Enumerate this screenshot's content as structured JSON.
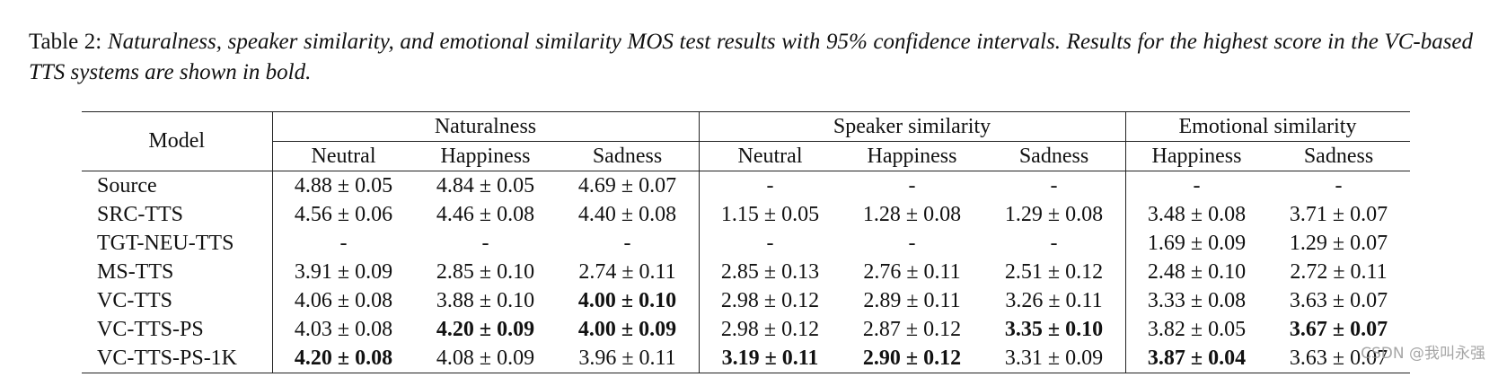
{
  "caption": {
    "label": "Table 2:",
    "text": "Naturalness, speaker similarity, and emotional similarity MOS test results with 95% confidence intervals. Results for the highest score in the VC-based TTS systems are shown in bold."
  },
  "table": {
    "model_header": "Model",
    "groups": [
      {
        "name": "Naturalness",
        "columns": [
          "Neutral",
          "Happiness",
          "Sadness"
        ]
      },
      {
        "name": "Speaker similarity",
        "columns": [
          "Neutral",
          "Happiness",
          "Sadness"
        ]
      },
      {
        "name": "Emotional similarity",
        "columns": [
          "Happiness",
          "Sadness"
        ]
      }
    ],
    "rows": [
      {
        "model": "Source",
        "cells": [
          "4.88 ± 0.05",
          "4.84 ± 0.05",
          "4.69 ± 0.07",
          "-",
          "-",
          "-",
          "-",
          "-"
        ]
      },
      {
        "model": "SRC-TTS",
        "cells": [
          "4.56 ± 0.06",
          "4.46 ± 0.08",
          "4.40 ± 0.08",
          "1.15 ± 0.05",
          "1.28 ± 0.08",
          "1.29 ± 0.08",
          "3.48 ± 0.08",
          "3.71 ± 0.07"
        ]
      },
      {
        "model": "TGT-NEU-TTS",
        "cells": [
          "-",
          "-",
          "-",
          "-",
          "-",
          "-",
          "1.69 ± 0.09",
          "1.29 ± 0.07"
        ]
      },
      {
        "model": "MS-TTS",
        "cells": [
          "3.91 ± 0.09",
          "2.85 ± 0.10",
          "2.74 ± 0.11",
          "2.85 ± 0.13",
          "2.76 ± 0.11",
          "2.51 ± 0.12",
          "2.48 ± 0.10",
          "2.72 ± 0.11"
        ]
      },
      {
        "model": "VC-TTS",
        "cells": [
          "4.06 ± 0.08",
          "3.88 ± 0.10",
          {
            "text": "4.00 ± 0.10",
            "bold": true
          },
          "2.98 ± 0.12",
          "2.89 ± 0.11",
          "3.26 ± 0.11",
          "3.33 ± 0.08",
          "3.63 ± 0.07"
        ]
      },
      {
        "model": "VC-TTS-PS",
        "cells": [
          "4.03 ± 0.08",
          {
            "text": "4.20 ± 0.09",
            "bold": true
          },
          {
            "text": "4.00 ± 0.09",
            "bold": true
          },
          "2.98 ± 0.12",
          "2.87 ± 0.12",
          {
            "text": "3.35 ± 0.10",
            "bold": true
          },
          "3.82 ± 0.05",
          {
            "text": "3.67 ± 0.07",
            "bold": true
          }
        ]
      },
      {
        "model": "VC-TTS-PS-1K",
        "cells": [
          {
            "text": "4.20 ± 0.08",
            "bold": true
          },
          "4.08 ± 0.09",
          "3.96 ± 0.11",
          {
            "text": "3.19 ± 0.11",
            "bold": true
          },
          {
            "text": "2.90 ± 0.12",
            "bold": true
          },
          "3.31 ± 0.09",
          {
            "text": "3.87 ± 0.04",
            "bold": true
          },
          "3.63 ± 0.07"
        ]
      }
    ]
  },
  "watermark": "CSDN @我叫永强"
}
